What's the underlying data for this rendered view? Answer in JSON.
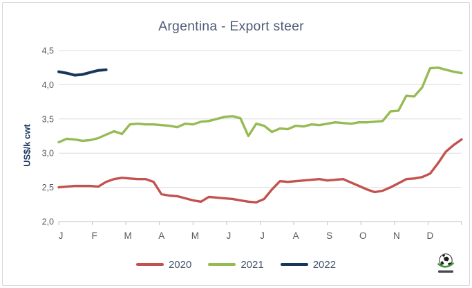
{
  "chart_data": {
    "type": "line",
    "title": "Argentina - Export steer",
    "ylabel": "US$/k cwt",
    "ylim": [
      2.0,
      4.5
    ],
    "yticks": [
      {
        "value": 2.0,
        "label": "2,0"
      },
      {
        "value": 2.5,
        "label": "2,5"
      },
      {
        "value": 3.0,
        "label": "3,0"
      },
      {
        "value": 3.5,
        "label": "3,5"
      },
      {
        "value": 4.0,
        "label": "4,0"
      },
      {
        "value": 4.5,
        "label": "4,5"
      }
    ],
    "x_months": [
      "J",
      "F",
      "M",
      "A",
      "M",
      "J",
      "J",
      "A",
      "S",
      "O",
      "N",
      "D"
    ],
    "points_per_year": 52,
    "grid": "horizontal",
    "legend_position": "bottom",
    "series": [
      {
        "name": "2020",
        "color": "#c3524e",
        "values": [
          2.5,
          2.51,
          2.52,
          2.52,
          2.52,
          2.51,
          2.58,
          2.62,
          2.64,
          2.63,
          2.62,
          2.62,
          2.58,
          2.4,
          2.38,
          2.37,
          2.34,
          2.31,
          2.29,
          2.36,
          2.35,
          2.34,
          2.33,
          2.31,
          2.29,
          2.28,
          2.33,
          2.47,
          2.59,
          2.58,
          2.59,
          2.6,
          2.61,
          2.62,
          2.6,
          2.61,
          2.62,
          2.57,
          2.52,
          2.47,
          2.43,
          2.45,
          2.5,
          2.56,
          2.62,
          2.63,
          2.65,
          2.7,
          2.85,
          3.02,
          3.12,
          3.2
        ]
      },
      {
        "name": "2021",
        "color": "#96bb53",
        "values": [
          3.16,
          3.21,
          3.2,
          3.18,
          3.19,
          3.22,
          3.27,
          3.32,
          3.28,
          3.42,
          3.43,
          3.42,
          3.42,
          3.41,
          3.4,
          3.38,
          3.43,
          3.42,
          3.46,
          3.47,
          3.5,
          3.53,
          3.54,
          3.51,
          3.25,
          3.43,
          3.4,
          3.31,
          3.36,
          3.35,
          3.4,
          3.39,
          3.42,
          3.41,
          3.43,
          3.45,
          3.44,
          3.43,
          3.45,
          3.45,
          3.46,
          3.47,
          3.61,
          3.62,
          3.84,
          3.83,
          3.96,
          4.24,
          4.25,
          4.22,
          4.19,
          4.17
        ]
      },
      {
        "name": "2022",
        "color": "#17365d",
        "values": [
          4.19,
          4.17,
          4.14,
          4.15,
          4.18,
          4.21,
          4.22
        ]
      }
    ]
  },
  "colors": {
    "grid": "#dcdcdc",
    "axis": "#bfbfbf",
    "tick_text": "#595959",
    "title_text": "#4e5d78",
    "legend_text": "#44546a"
  },
  "logo": {
    "icon": "globe-icon"
  }
}
